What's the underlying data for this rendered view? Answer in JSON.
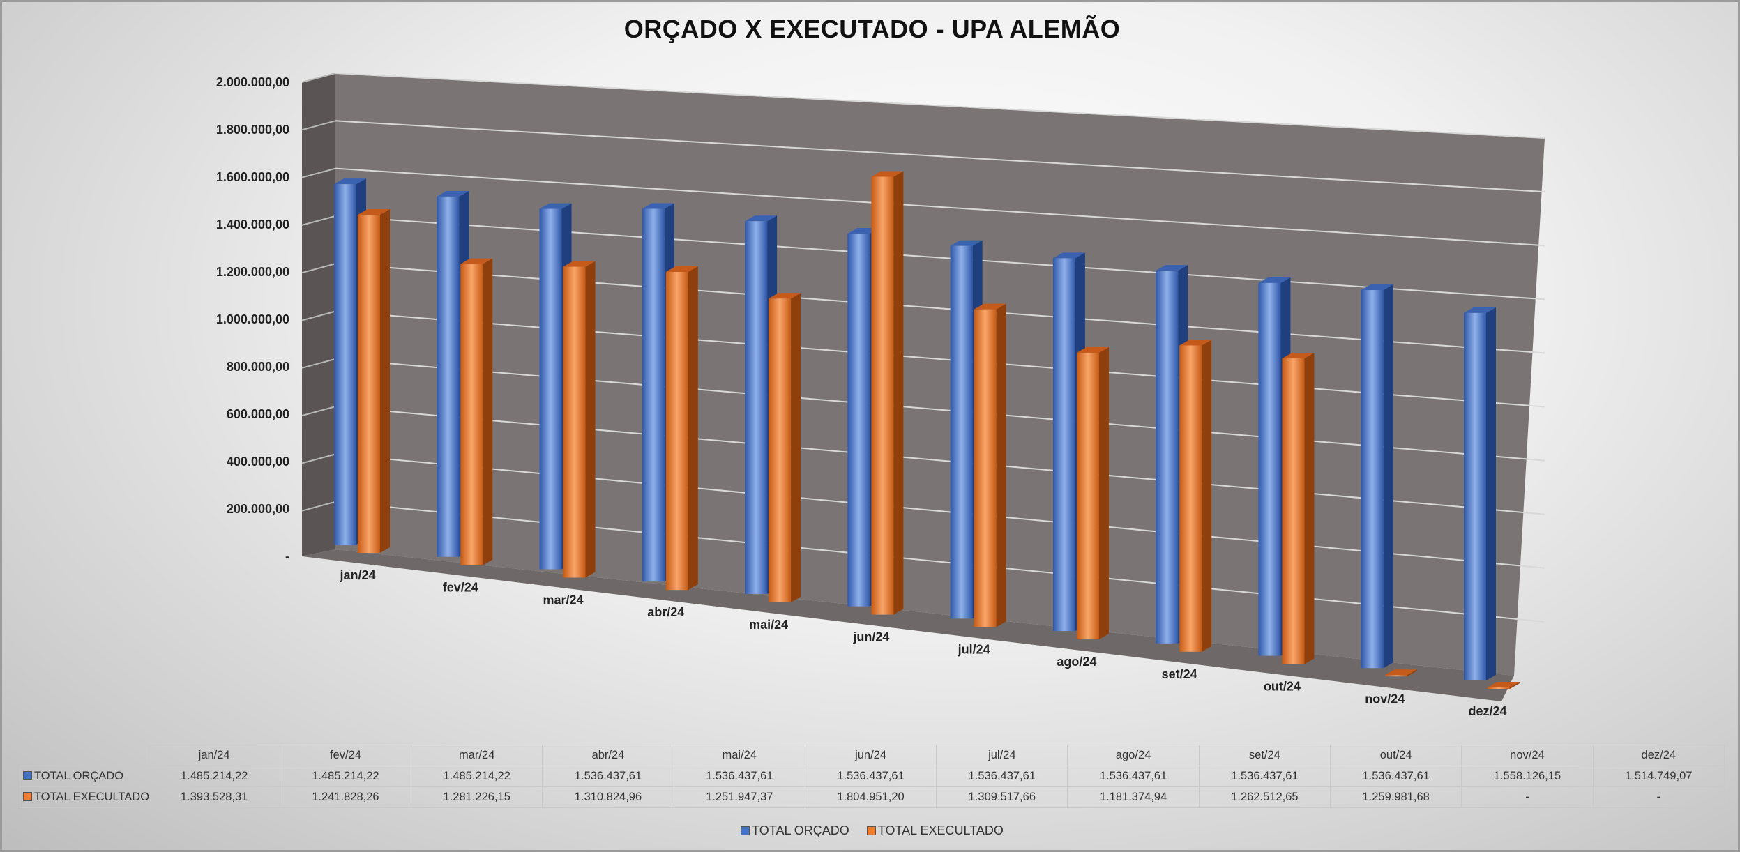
{
  "chart_data": {
    "type": "bar",
    "title": "ORÇADO X EXECUTADO - UPA ALEMÃO",
    "categories": [
      "jan/24",
      "fev/24",
      "mar/24",
      "abr/24",
      "mai/24",
      "jun/24",
      "jul/24",
      "ago/24",
      "set/24",
      "out/24",
      "nov/24",
      "dez/24"
    ],
    "series": [
      {
        "name": "TOTAL ORÇADO",
        "color": "#4472C4",
        "values": [
          1485214.22,
          1485214.22,
          1485214.22,
          1536437.61,
          1536437.61,
          1536437.61,
          1536437.61,
          1536437.61,
          1536437.61,
          1536437.61,
          1558126.15,
          1514749.07
        ],
        "labels": [
          "1.485.214,22",
          "1.485.214,22",
          "1.485.214,22",
          "1.536.437,61",
          "1.536.437,61",
          "1.536.437,61",
          "1.536.437,61",
          "1.536.437,61",
          "1.536.437,61",
          "1.536.437,61",
          "1.558.126,15",
          "1.514.749,07"
        ]
      },
      {
        "name": "TOTAL EXECULTADO",
        "color": "#ED7D31",
        "values": [
          1393528.31,
          1241828.26,
          1281226.15,
          1310824.96,
          1251947.37,
          1804951.2,
          1309517.66,
          1181374.94,
          1262512.65,
          1259981.68,
          0,
          0
        ],
        "labels": [
          "1.393.528,31",
          "1.241.828,26",
          "1.281.226,15",
          "1.310.824,96",
          "1.251.947,37",
          "1.804.951,20",
          "1.309.517,66",
          "1.181.374,94",
          "1.262.512,65",
          "1.259.981,68",
          "-",
          "-"
        ]
      }
    ],
    "ylim": [
      0,
      2000000
    ],
    "yticks": [
      "-",
      "200.000,00",
      "400.000,00",
      "600.000,00",
      "800.000,00",
      "1.000.000,00",
      "1.200.000,00",
      "1.400.000,00",
      "1.600.000,00",
      "1.800.000,00",
      "2.000.000,00"
    ],
    "grid": true,
    "legend": "bottom",
    "data_table": true
  }
}
